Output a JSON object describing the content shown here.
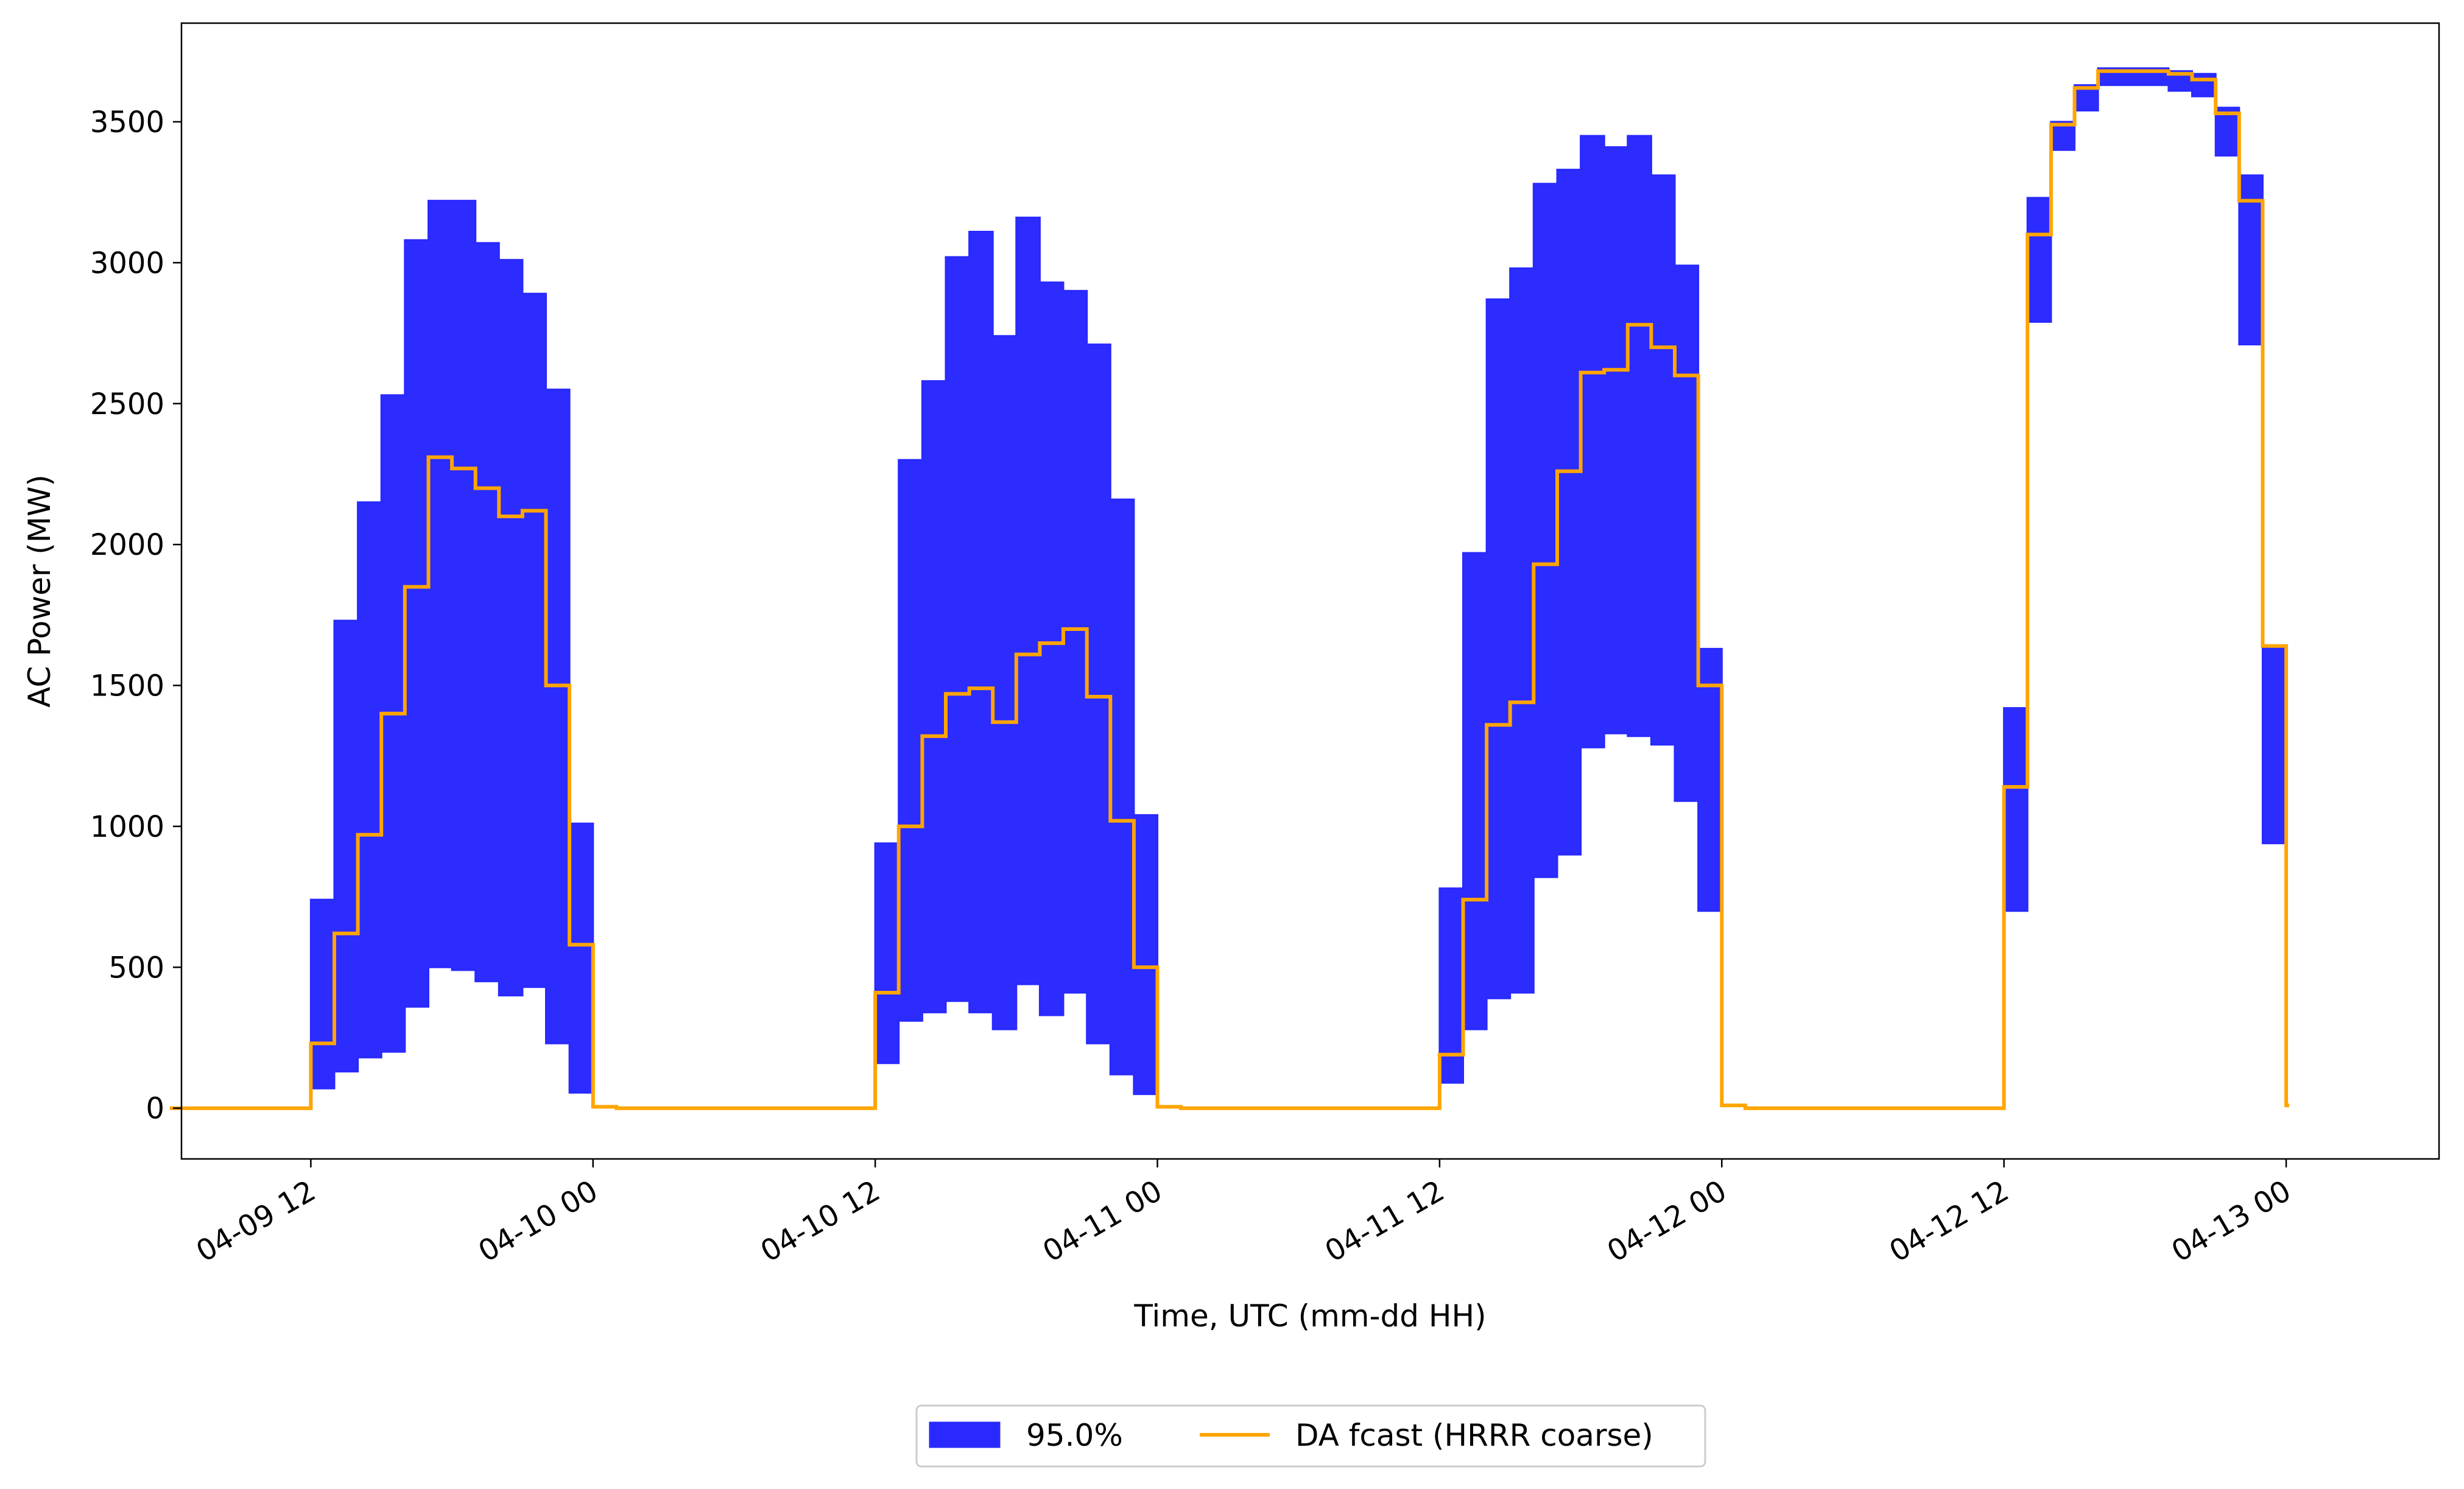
{
  "chart_data": {
    "type": "area",
    "step": "post",
    "xlabel": "Time, UTC (mm-dd HH)",
    "ylabel": "AC Power (MW)",
    "xlim": [
      "2024-04-09 06:30",
      "2024-04-13 06:30"
    ],
    "ylim": [
      -180,
      3850
    ],
    "x_ticks": [
      {
        "t": "2024-04-09 12:00",
        "label": "04-09 12"
      },
      {
        "t": "2024-04-10 00:00",
        "label": "04-10 00"
      },
      {
        "t": "2024-04-10 12:00",
        "label": "04-10 12"
      },
      {
        "t": "2024-04-11 00:00",
        "label": "04-11 00"
      },
      {
        "t": "2024-04-11 12:00",
        "label": "04-11 12"
      },
      {
        "t": "2024-04-12 00:00",
        "label": "04-12 00"
      },
      {
        "t": "2024-04-12 12:00",
        "label": "04-12 12"
      },
      {
        "t": "2024-04-13 00:00",
        "label": "04-13 00"
      }
    ],
    "y_ticks": [
      0,
      500,
      1000,
      1500,
      2000,
      2500,
      3000,
      3500
    ],
    "legend": {
      "placement": "bottom-center",
      "columns": 2
    },
    "series": [
      {
        "name": "95.0%",
        "kind": "interval",
        "color": "#2929ff",
        "segments": [
          {
            "x": [
              "2024-04-09 12:00",
              "2024-04-09 13:00",
              "2024-04-09 14:00",
              "2024-04-09 15:00",
              "2024-04-09 16:00",
              "2024-04-09 17:00",
              "2024-04-09 18:00",
              "2024-04-09 19:00",
              "2024-04-09 20:00",
              "2024-04-09 21:00",
              "2024-04-09 22:00",
              "2024-04-09 23:00",
              "2024-04-10 00:00"
            ],
            "lower": [
              70,
              130,
              180,
              200,
              360,
              500,
              490,
              450,
              400,
              430,
              230,
              55,
              55
            ],
            "upper": [
              740,
              1730,
              2150,
              2530,
              3080,
              3220,
              3220,
              3070,
              3010,
              2890,
              2550,
              1010,
              1010
            ]
          },
          {
            "x": [
              "2024-04-10 12:00",
              "2024-04-10 13:00",
              "2024-04-10 14:00",
              "2024-04-10 15:00",
              "2024-04-10 16:00",
              "2024-04-10 17:00",
              "2024-04-10 18:00",
              "2024-04-10 19:00",
              "2024-04-10 20:00",
              "2024-04-10 21:00",
              "2024-04-10 22:00",
              "2024-04-10 23:00",
              "2024-04-11 00:00"
            ],
            "lower": [
              160,
              310,
              340,
              380,
              340,
              280,
              440,
              330,
              410,
              230,
              120,
              50,
              50
            ],
            "upper": [
              940,
              2300,
              2580,
              3020,
              3110,
              2740,
              3160,
              2930,
              2900,
              2710,
              2160,
              1040,
              1040
            ]
          },
          {
            "x": [
              "2024-04-11 12:00",
              "2024-04-11 13:00",
              "2024-04-11 14:00",
              "2024-04-11 15:00",
              "2024-04-11 16:00",
              "2024-04-11 17:00",
              "2024-04-11 18:00",
              "2024-04-11 19:00",
              "2024-04-11 20:00",
              "2024-04-11 21:00",
              "2024-04-11 22:00",
              "2024-04-11 23:00",
              "2024-04-12 00:00"
            ],
            "lower": [
              90,
              280,
              390,
              410,
              820,
              900,
              1280,
              1330,
              1320,
              1290,
              1090,
              700,
              700
            ],
            "upper": [
              780,
              1970,
              2870,
              2980,
              3280,
              3330,
              3450,
              3410,
              3450,
              3310,
              2990,
              1630,
              1630
            ]
          },
          {
            "x": [
              "2024-04-12 12:00",
              "2024-04-12 13:00",
              "2024-04-12 14:00",
              "2024-04-12 15:00",
              "2024-04-12 16:00",
              "2024-04-12 17:00",
              "2024-04-12 18:00",
              "2024-04-12 19:00",
              "2024-04-12 20:00",
              "2024-04-12 21:00",
              "2024-04-12 22:00",
              "2024-04-12 23:00",
              "2024-04-13 00:00"
            ],
            "lower": [
              700,
              2790,
              3400,
              3540,
              3630,
              3630,
              3630,
              3610,
              3590,
              3380,
              2710,
              940,
              940
            ],
            "upper": [
              1420,
              3230,
              3500,
              3630,
              3690,
              3690,
              3690,
              3680,
              3670,
              3550,
              3310,
              1640,
              1640
            ]
          }
        ]
      },
      {
        "name": "DA fcast (HRRR coarse)",
        "kind": "step-line",
        "color": "#ffa500",
        "x": [
          "2024-04-09 06:00",
          "2024-04-09 07:00",
          "2024-04-09 08:00",
          "2024-04-09 09:00",
          "2024-04-09 10:00",
          "2024-04-09 11:00",
          "2024-04-09 12:00",
          "2024-04-09 13:00",
          "2024-04-09 14:00",
          "2024-04-09 15:00",
          "2024-04-09 16:00",
          "2024-04-09 17:00",
          "2024-04-09 18:00",
          "2024-04-09 19:00",
          "2024-04-09 20:00",
          "2024-04-09 21:00",
          "2024-04-09 22:00",
          "2024-04-09 23:00",
          "2024-04-10 00:00",
          "2024-04-10 01:00",
          "2024-04-10 02:00",
          "2024-04-10 03:00",
          "2024-04-10 04:00",
          "2024-04-10 05:00",
          "2024-04-10 06:00",
          "2024-04-10 07:00",
          "2024-04-10 08:00",
          "2024-04-10 09:00",
          "2024-04-10 10:00",
          "2024-04-10 11:00",
          "2024-04-10 12:00",
          "2024-04-10 13:00",
          "2024-04-10 14:00",
          "2024-04-10 15:00",
          "2024-04-10 16:00",
          "2024-04-10 17:00",
          "2024-04-10 18:00",
          "2024-04-10 19:00",
          "2024-04-10 20:00",
          "2024-04-10 21:00",
          "2024-04-10 22:00",
          "2024-04-10 23:00",
          "2024-04-11 00:00",
          "2024-04-11 01:00",
          "2024-04-11 02:00",
          "2024-04-11 03:00",
          "2024-04-11 04:00",
          "2024-04-11 05:00",
          "2024-04-11 06:00",
          "2024-04-11 07:00",
          "2024-04-11 08:00",
          "2024-04-11 09:00",
          "2024-04-11 10:00",
          "2024-04-11 11:00",
          "2024-04-11 12:00",
          "2024-04-11 13:00",
          "2024-04-11 14:00",
          "2024-04-11 15:00",
          "2024-04-11 16:00",
          "2024-04-11 17:00",
          "2024-04-11 18:00",
          "2024-04-11 19:00",
          "2024-04-11 20:00",
          "2024-04-11 21:00",
          "2024-04-11 22:00",
          "2024-04-11 23:00",
          "2024-04-12 00:00",
          "2024-04-12 01:00",
          "2024-04-12 02:00",
          "2024-04-12 03:00",
          "2024-04-12 04:00",
          "2024-04-12 05:00",
          "2024-04-12 06:00",
          "2024-04-12 07:00",
          "2024-04-12 08:00",
          "2024-04-12 09:00",
          "2024-04-12 10:00",
          "2024-04-12 11:00",
          "2024-04-12 12:00",
          "2024-04-12 13:00",
          "2024-04-12 14:00",
          "2024-04-12 15:00",
          "2024-04-12 16:00",
          "2024-04-12 17:00",
          "2024-04-12 18:00",
          "2024-04-12 19:00",
          "2024-04-12 20:00",
          "2024-04-12 21:00",
          "2024-04-12 22:00",
          "2024-04-12 23:00",
          "2024-04-13 00:00"
        ],
        "values": [
          0,
          0,
          0,
          0,
          0,
          0,
          230,
          620,
          970,
          1400,
          1850,
          2310,
          2270,
          2200,
          2100,
          2120,
          1500,
          580,
          5,
          0,
          0,
          0,
          0,
          0,
          0,
          0,
          0,
          0,
          0,
          0,
          410,
          1000,
          1320,
          1470,
          1490,
          1370,
          1610,
          1650,
          1700,
          1460,
          1020,
          500,
          5,
          0,
          0,
          0,
          0,
          0,
          0,
          0,
          0,
          0,
          0,
          0,
          190,
          740,
          1360,
          1440,
          1930,
          2260,
          2610,
          2620,
          2780,
          2700,
          2600,
          1500,
          10,
          0,
          0,
          0,
          0,
          0,
          0,
          0,
          0,
          0,
          0,
          0,
          1140,
          3100,
          3490,
          3620,
          3680,
          3680,
          3680,
          3670,
          3650,
          3530,
          3220,
          1640,
          10
        ]
      }
    ]
  }
}
